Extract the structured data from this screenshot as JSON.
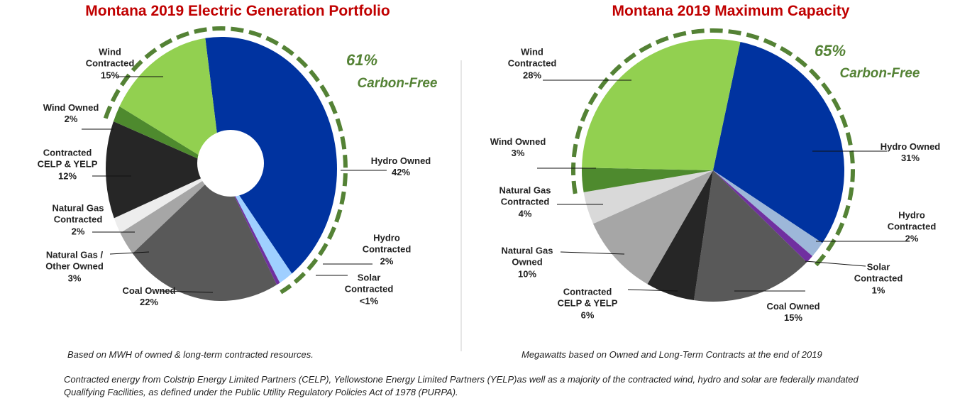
{
  "chart_data": [
    {
      "type": "pie",
      "title": "Montana 2019 Electric Generation Portfolio",
      "categories": [
        "Hydro Owned",
        "Hydro Contracted",
        "Solar Contracted",
        "Coal Owned",
        "Natural Gas / Other Owned",
        "Natural Gas Contracted",
        "Contracted CELP & YELP",
        "Wind Owned",
        "Wind Contracted"
      ],
      "values": [
        42,
        2,
        0.5,
        22,
        3,
        2,
        12,
        2,
        15
      ],
      "value_labels": [
        "42%",
        "2%",
        "<1%",
        "22%",
        "3%",
        "2%",
        "12%",
        "2%",
        "15%"
      ],
      "colors": [
        "#0033a0",
        "#9fcfff",
        "#7030a0",
        "#595959",
        "#a6a6a6",
        "#ededed",
        "#262626",
        "#4e8a2e",
        "#92d050"
      ],
      "donut": true,
      "annotations": [
        "61%",
        "Carbon-Free"
      ],
      "note": "Based on MWH of owned & long-term contracted resources."
    },
    {
      "type": "pie",
      "title": "Montana 2019 Maximum Capacity",
      "categories": [
        "Hydro Owned",
        "Hydro Contracted",
        "Solar Contracted",
        "Coal Owned",
        "Contracted CELP & YELP",
        "Natural Gas Owned",
        "Natural Gas Contracted",
        "Wind Owned",
        "Wind Contracted"
      ],
      "values": [
        31,
        2,
        1,
        15,
        6,
        10,
        4,
        3,
        28
      ],
      "value_labels": [
        "31%",
        "2%",
        "1%",
        "15%",
        "6%",
        "10%",
        "4%",
        "3%",
        "28%"
      ],
      "colors": [
        "#0033a0",
        "#9db7d9",
        "#7030a0",
        "#595959",
        "#262626",
        "#a6a6a6",
        "#d9d9d9",
        "#4e8a2e",
        "#92d050"
      ],
      "donut": false,
      "annotations": [
        "65%",
        "Carbon-Free"
      ],
      "note": "Megawatts based on Owned and Long-Term Contracts at the end of 2019"
    }
  ],
  "footnote": "Contracted energy from Colstrip Energy Limited Partners (CELP), Yellowstone Energy Limited Partners (YELP)as well as a majority of the contracted wind, hydro and solar are federally mandated Qualifying Facilities, as defined under the Public Utility Regulatory Policies Act of 1978 (PURPA)."
}
